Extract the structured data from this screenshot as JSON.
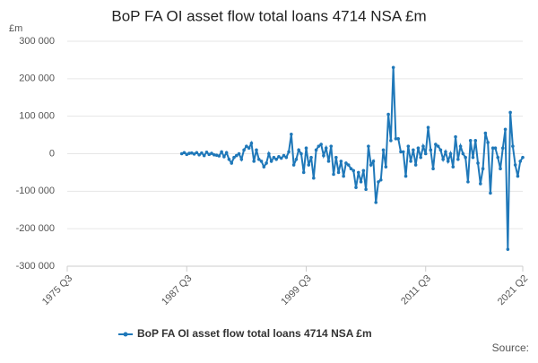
{
  "chart_data": {
    "type": "line",
    "title": "BoP FA OI asset flow total loans 4714 NSA £m",
    "y_label": "£m",
    "source": "Source:",
    "categories": [
      "1975 Q3",
      null,
      null,
      null,
      null,
      null,
      null,
      null,
      null,
      null,
      null,
      null,
      null,
      null,
      null,
      null,
      null,
      null,
      null,
      null,
      null,
      null,
      null,
      null,
      null,
      null,
      null,
      null,
      null,
      null,
      null,
      null,
      null,
      null,
      null,
      null,
      null,
      null,
      null,
      null,
      null,
      null,
      null,
      null,
      null,
      null,
      null,
      null,
      "1987 Q3",
      null,
      null,
      null,
      null,
      null,
      null,
      null,
      null,
      null,
      null,
      null,
      null,
      null,
      null,
      null,
      null,
      null,
      null,
      null,
      null,
      null,
      null,
      null,
      null,
      null,
      null,
      null,
      null,
      null,
      null,
      null,
      null,
      null,
      null,
      null,
      null,
      null,
      null,
      null,
      null,
      null,
      null,
      null,
      null,
      null,
      null,
      null,
      "1999 Q3",
      null,
      null,
      null,
      null,
      null,
      null,
      null,
      null,
      null,
      null,
      null,
      null,
      null,
      null,
      null,
      null,
      null,
      null,
      null,
      null,
      null,
      null,
      null,
      null,
      null,
      null,
      null,
      null,
      null,
      null,
      null,
      null,
      null,
      null,
      null,
      null,
      null,
      null,
      null,
      null,
      null,
      null,
      null,
      null,
      null,
      null,
      null,
      "2011 Q3",
      null,
      null,
      null,
      null,
      null,
      null,
      null,
      null,
      null,
      null,
      null,
      null,
      null,
      null,
      null,
      null,
      null,
      null,
      null,
      null,
      null,
      null,
      null,
      null,
      null,
      null,
      null,
      null,
      null,
      null,
      null,
      null,
      null,
      null,
      null,
      null,
      null,
      null,
      "2021 Q2"
    ],
    "series": [
      {
        "name": "BoP FA OI asset flow total loans 4714 NSA £m",
        "color": "#1f78b9",
        "values": [
          null,
          null,
          null,
          null,
          null,
          null,
          null,
          null,
          null,
          null,
          null,
          null,
          null,
          null,
          null,
          null,
          null,
          null,
          null,
          null,
          null,
          null,
          null,
          null,
          null,
          null,
          null,
          null,
          null,
          null,
          null,
          null,
          null,
          null,
          null,
          null,
          null,
          null,
          null,
          null,
          null,
          null,
          null,
          null,
          null,
          null,
          0,
          3000,
          -2000,
          1000,
          2000,
          -1000,
          3000,
          -3000,
          2000,
          -5000,
          4000,
          -2000,
          1000,
          -3000,
          -4000,
          -6000,
          5000,
          -8000,
          3000,
          -15000,
          -25000,
          -10000,
          -5000,
          0,
          -15000,
          10000,
          20000,
          15000,
          28000,
          -20000,
          10000,
          -15000,
          -20000,
          -35000,
          -25000,
          0,
          -20000,
          -10000,
          -15000,
          -8000,
          -12000,
          -5000,
          -10000,
          5000,
          52000,
          -30000,
          -15000,
          10000,
          0,
          -50000,
          15000,
          -30000,
          -10000,
          -65000,
          10000,
          20000,
          25000,
          -5000,
          15000,
          -20000,
          20000,
          -55000,
          -10000,
          -50000,
          -20000,
          -60000,
          -25000,
          -30000,
          -40000,
          -45000,
          -90000,
          -50000,
          -75000,
          -45000,
          -95000,
          20000,
          -30000,
          -20000,
          -130000,
          -75000,
          -70000,
          10000,
          -35000,
          105000,
          35000,
          230000,
          40000,
          40000,
          5000,
          5000,
          -60000,
          20000,
          -20000,
          10000,
          -30000,
          15000,
          -10000,
          20000,
          0,
          70000,
          10000,
          -40000,
          25000,
          20000,
          10000,
          -15000,
          5000,
          -20000,
          0,
          -35000,
          45000,
          -15000,
          20000,
          0,
          -10000,
          -75000,
          35000,
          -10000,
          35000,
          -25000,
          -80000,
          -40000,
          55000,
          30000,
          -105000,
          15000,
          15000,
          -10000,
          -40000,
          15000,
          65000,
          -255000,
          110000,
          20000,
          -30000,
          -60000,
          -20000,
          -10000
        ]
      }
    ],
    "ylim": [
      -300000,
      300000
    ],
    "yticks": [
      {
        "value": -300000,
        "label": "-300 000"
      },
      {
        "value": -200000,
        "label": "-200 000"
      },
      {
        "value": -100000,
        "label": "-100 000"
      },
      0,
      {
        "value": 100000,
        "label": "100 000"
      },
      {
        "value": 200000,
        "label": "200 000"
      },
      {
        "value": 300000,
        "label": "300 000"
      }
    ],
    "grid": true
  }
}
